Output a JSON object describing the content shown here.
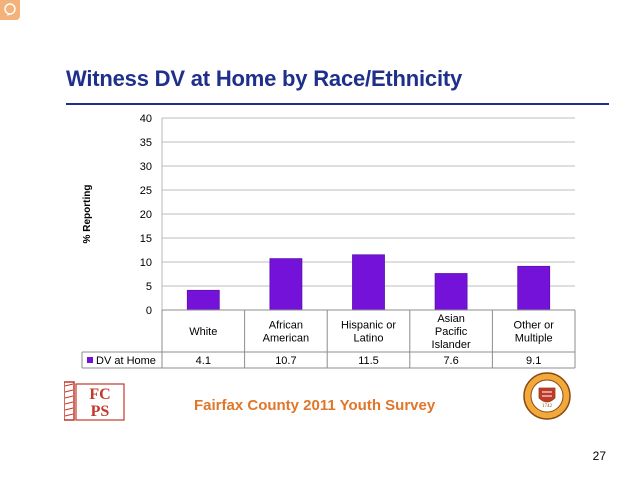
{
  "slide": {
    "title": "Witness DV at Home by Race/Ethnicity",
    "footer_text": "Fairfax County 2011 Youth Survey",
    "page_number": "27",
    "logo_letters": "FCPS",
    "seal_year": "1742"
  },
  "colors": {
    "title": "#1f2f8c",
    "bar": "#7412d9",
    "footer": "#e0762a"
  },
  "chart_data": {
    "type": "bar",
    "title": "",
    "xlabel": "",
    "ylabel": "% Reporting",
    "ylim": [
      0,
      40
    ],
    "yticks": [
      0,
      5,
      10,
      15,
      20,
      25,
      30,
      35,
      40
    ],
    "grid": true,
    "categories": [
      [
        "White"
      ],
      [
        "African",
        "American"
      ],
      [
        "Hispanic or",
        "Latino"
      ],
      [
        "Asian",
        "Pacific",
        "Islander"
      ],
      [
        "Other or",
        "Multiple"
      ]
    ],
    "series": [
      {
        "name": "DV at Home",
        "values": [
          4.1,
          10.7,
          11.5,
          7.6,
          9.1
        ],
        "labels": [
          "4.1",
          "10.7",
          "11.5",
          "7.6",
          "9.1"
        ]
      }
    ],
    "data_table": true
  }
}
